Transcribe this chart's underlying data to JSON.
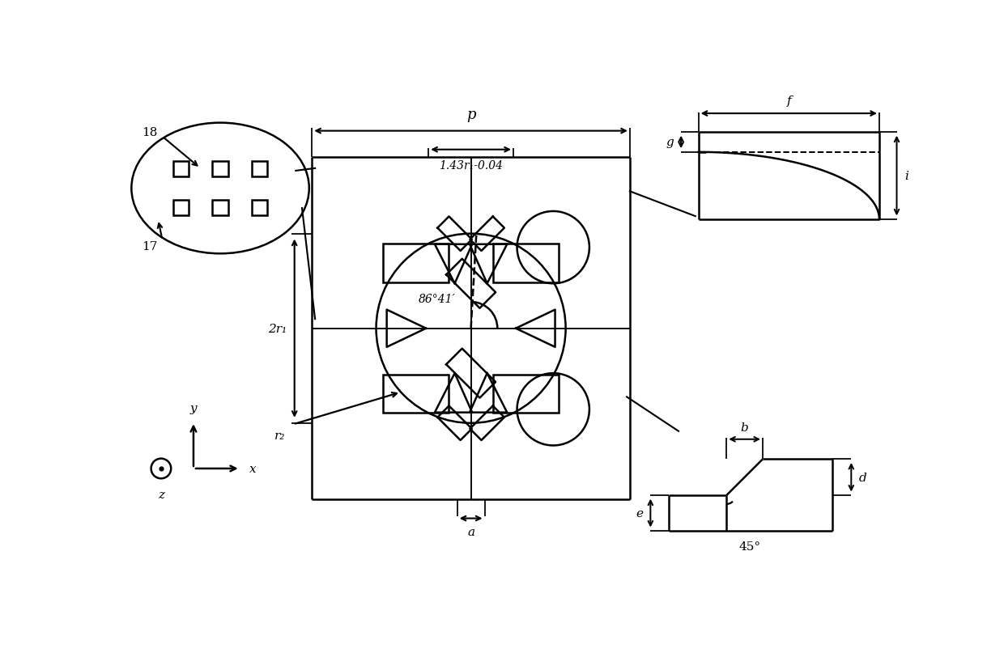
{
  "bg_color": "#ffffff",
  "line_color": "#000000",
  "lw": 1.8,
  "fig_width": 12.4,
  "fig_height": 8.29,
  "labels": {
    "p": "p",
    "dim_label": "1.43r₁-0.04",
    "angle": "86°41′",
    "two_r1": "2r₁",
    "r2": "r₂",
    "a": "a",
    "b": "b",
    "d": "d",
    "e": "e",
    "f": "f",
    "g": "g",
    "i": "i",
    "num18": "18",
    "num17": "17",
    "deg45": "45°",
    "x": "x",
    "y": "y",
    "z": "z"
  }
}
